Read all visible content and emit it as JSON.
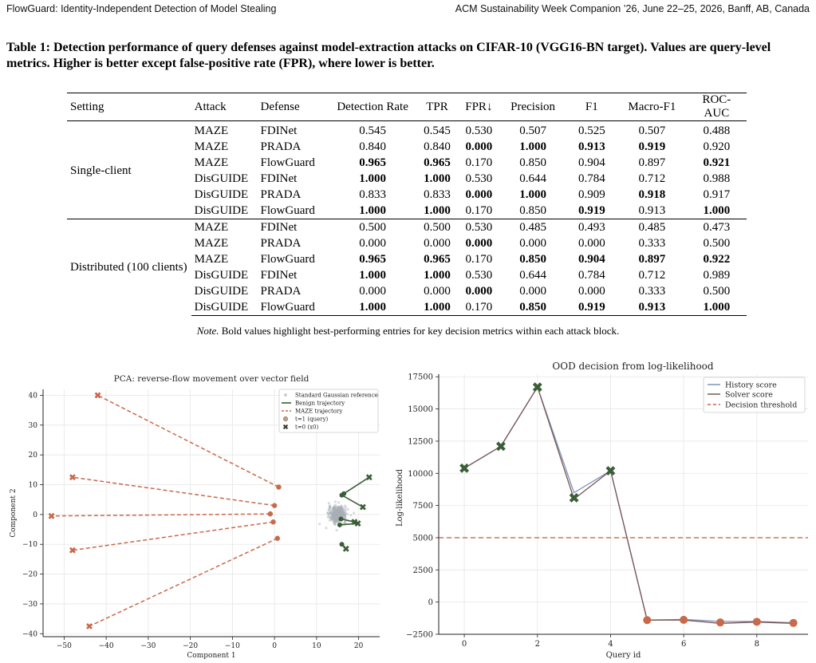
{
  "header": {
    "left": "FlowGuard: Identity-Independent Detection of Model Stealing",
    "right": "ACM Sustainability Week Companion ’26, June 22–25, 2026, Banff, AB, Canada"
  },
  "table": {
    "caption": "Table 1: Detection performance of query defenses against model-extraction attacks on CIFAR-10 (VGG16-BN target). Values are query-level metrics. Higher is better except false-positive rate (FPR), where lower is better.",
    "columns": [
      "Setting",
      "Attack",
      "Defense",
      "Detection Rate",
      "TPR",
      "FPR↓",
      "Precision",
      "F1",
      "Macro-F1",
      "ROC-AUC"
    ],
    "blocks": [
      {
        "setting": "Single-client",
        "rows": [
          {
            "attack": "MAZE",
            "defense": "FDINet",
            "values": [
              "0.545",
              "0.545",
              "0.530",
              "0.507",
              "0.525",
              "0.507",
              "0.488"
            ],
            "bold": []
          },
          {
            "attack": "MAZE",
            "defense": "PRADA",
            "values": [
              "0.840",
              "0.840",
              "0.000",
              "1.000",
              "0.913",
              "0.919",
              "0.920"
            ],
            "bold": [
              2,
              3,
              4,
              5
            ]
          },
          {
            "attack": "MAZE",
            "defense": "FlowGuard",
            "values": [
              "0.965",
              "0.965",
              "0.170",
              "0.850",
              "0.904",
              "0.897",
              "0.921"
            ],
            "bold": [
              0,
              1,
              6
            ]
          },
          {
            "attack": "DisGUIDE",
            "defense": "FDINet",
            "values": [
              "1.000",
              "1.000",
              "0.530",
              "0.644",
              "0.784",
              "0.712",
              "0.988"
            ],
            "bold": [
              0,
              1
            ]
          },
          {
            "attack": "DisGUIDE",
            "defense": "PRADA",
            "values": [
              "0.833",
              "0.833",
              "0.000",
              "1.000",
              "0.909",
              "0.918",
              "0.917"
            ],
            "bold": [
              2,
              3,
              5
            ]
          },
          {
            "attack": "DisGUIDE",
            "defense": "FlowGuard",
            "values": [
              "1.000",
              "1.000",
              "0.170",
              "0.850",
              "0.919",
              "0.913",
              "1.000"
            ],
            "bold": [
              0,
              1,
              4,
              6
            ]
          }
        ]
      },
      {
        "setting": "Distributed (100 clients)",
        "rows": [
          {
            "attack": "MAZE",
            "defense": "FDINet",
            "values": [
              "0.500",
              "0.500",
              "0.530",
              "0.485",
              "0.493",
              "0.485",
              "0.473"
            ],
            "bold": []
          },
          {
            "attack": "MAZE",
            "defense": "PRADA",
            "values": [
              "0.000",
              "0.000",
              "0.000",
              "0.000",
              "0.000",
              "0.333",
              "0.500"
            ],
            "bold": [
              2
            ]
          },
          {
            "attack": "MAZE",
            "defense": "FlowGuard",
            "values": [
              "0.965",
              "0.965",
              "0.170",
              "0.850",
              "0.904",
              "0.897",
              "0.922"
            ],
            "bold": [
              0,
              1,
              3,
              4,
              5,
              6
            ]
          },
          {
            "attack": "DisGUIDE",
            "defense": "FDINet",
            "values": [
              "1.000",
              "1.000",
              "0.530",
              "0.644",
              "0.784",
              "0.712",
              "0.989"
            ],
            "bold": [
              0,
              1
            ]
          },
          {
            "attack": "DisGUIDE",
            "defense": "PRADA",
            "values": [
              "0.000",
              "0.000",
              "0.000",
              "0.000",
              "0.000",
              "0.333",
              "0.500"
            ],
            "bold": [
              2
            ]
          },
          {
            "attack": "DisGUIDE",
            "defense": "FlowGuard",
            "values": [
              "1.000",
              "1.000",
              "0.170",
              "0.850",
              "0.919",
              "0.913",
              "1.000"
            ],
            "bold": [
              0,
              1,
              3,
              4,
              5,
              6
            ]
          }
        ]
      }
    ],
    "note_label": "Note.",
    "note_text": " Bold values highlight best-performing entries for key decision metrics within each attack block."
  },
  "colors": {
    "maze": "#c8694a",
    "benign": "#3b5e38",
    "history": "#7f93b8",
    "solver": "#7a5555",
    "threshold": "#c8694a",
    "gaussian": "#a8afb6",
    "query_marker": "#c0a081",
    "x0_marker": "#3b3b3b"
  },
  "chart_data": [
    {
      "type": "scatter",
      "title": "PCA: reverse-flow movement over vector field",
      "xlabel": "Component 1",
      "ylabel": "Component 2",
      "xlim": [
        -55,
        25
      ],
      "ylim": [
        -41,
        42
      ],
      "xticks": [
        -50,
        -40,
        -30,
        -20,
        -10,
        0,
        10,
        20
      ],
      "yticks": [
        -40,
        -30,
        -20,
        -10,
        0,
        10,
        20,
        30,
        40
      ],
      "grid": true,
      "legend_position": "top-right",
      "legend": [
        "Standard Gaussian reference",
        "Benign trajectory",
        "MAZE trajectory",
        "t=1 (query)",
        "t=0 (x0)"
      ],
      "gaussian_center": [
        15,
        0
      ],
      "maze_trajectories": [
        {
          "start": [
            1,
            9.2
          ],
          "end": [
            -42,
            40
          ]
        },
        {
          "start": [
            0,
            3
          ],
          "end": [
            -48,
            12.5
          ]
        },
        {
          "start": [
            -1,
            0.2
          ],
          "end": [
            -53,
            -0.5
          ]
        },
        {
          "start": [
            -0.3,
            -2.5
          ],
          "end": [
            -48,
            -12
          ]
        },
        {
          "start": [
            0.7,
            -8
          ],
          "end": [
            -44,
            -37.5
          ]
        }
      ],
      "benign_trajectories": [
        {
          "start": [
            16.5,
            7
          ],
          "end": [
            22.5,
            12.5
          ]
        },
        {
          "start": [
            16,
            6.5
          ],
          "end": [
            21,
            2.5
          ]
        },
        {
          "start": [
            15.8,
            -1.5
          ],
          "end": [
            19,
            -2.5
          ]
        },
        {
          "start": [
            15.5,
            -3.5
          ],
          "end": [
            19.8,
            -3
          ]
        },
        {
          "start": [
            16,
            -10
          ],
          "end": [
            17,
            -11.5
          ]
        }
      ]
    },
    {
      "type": "line",
      "title": "OOD decision from log-likelihood",
      "xlabel": "Query id",
      "ylabel": "Log-likelihood",
      "xlim": [
        -0.7,
        9.4
      ],
      "ylim": [
        -2500,
        17700
      ],
      "xticks": [
        0,
        2,
        4,
        6,
        8
      ],
      "yticks": [
        -2500,
        0,
        2500,
        5000,
        7500,
        10000,
        12500,
        15000,
        17500
      ],
      "grid": true,
      "legend_position": "top-right",
      "x": [
        0,
        1,
        2,
        3,
        4,
        5,
        6,
        7,
        8,
        9
      ],
      "series": [
        {
          "name": "History score",
          "values": [
            10400,
            12100,
            16700,
            8500,
            10200,
            -1400,
            -1350,
            -1500,
            -1500,
            -1600
          ]
        },
        {
          "name": "Solver score",
          "values": [
            10400,
            12100,
            16700,
            8000,
            10200,
            -1400,
            -1400,
            -1650,
            -1550,
            -1650
          ]
        }
      ],
      "threshold": {
        "name": "Decision threshold",
        "value": 5000
      },
      "markers": [
        {
          "x": 0,
          "y": 10400,
          "kind": "x0"
        },
        {
          "x": 1,
          "y": 12100,
          "kind": "x0"
        },
        {
          "x": 2,
          "y": 16700,
          "kind": "x0"
        },
        {
          "x": 3,
          "y": 8100,
          "kind": "x0"
        },
        {
          "x": 4,
          "y": 10200,
          "kind": "x0"
        },
        {
          "x": 5,
          "y": -1400,
          "kind": "query"
        },
        {
          "x": 6,
          "y": -1380,
          "kind": "query"
        },
        {
          "x": 7,
          "y": -1580,
          "kind": "query"
        },
        {
          "x": 8,
          "y": -1530,
          "kind": "query"
        },
        {
          "x": 9,
          "y": -1620,
          "kind": "query"
        }
      ]
    }
  ]
}
